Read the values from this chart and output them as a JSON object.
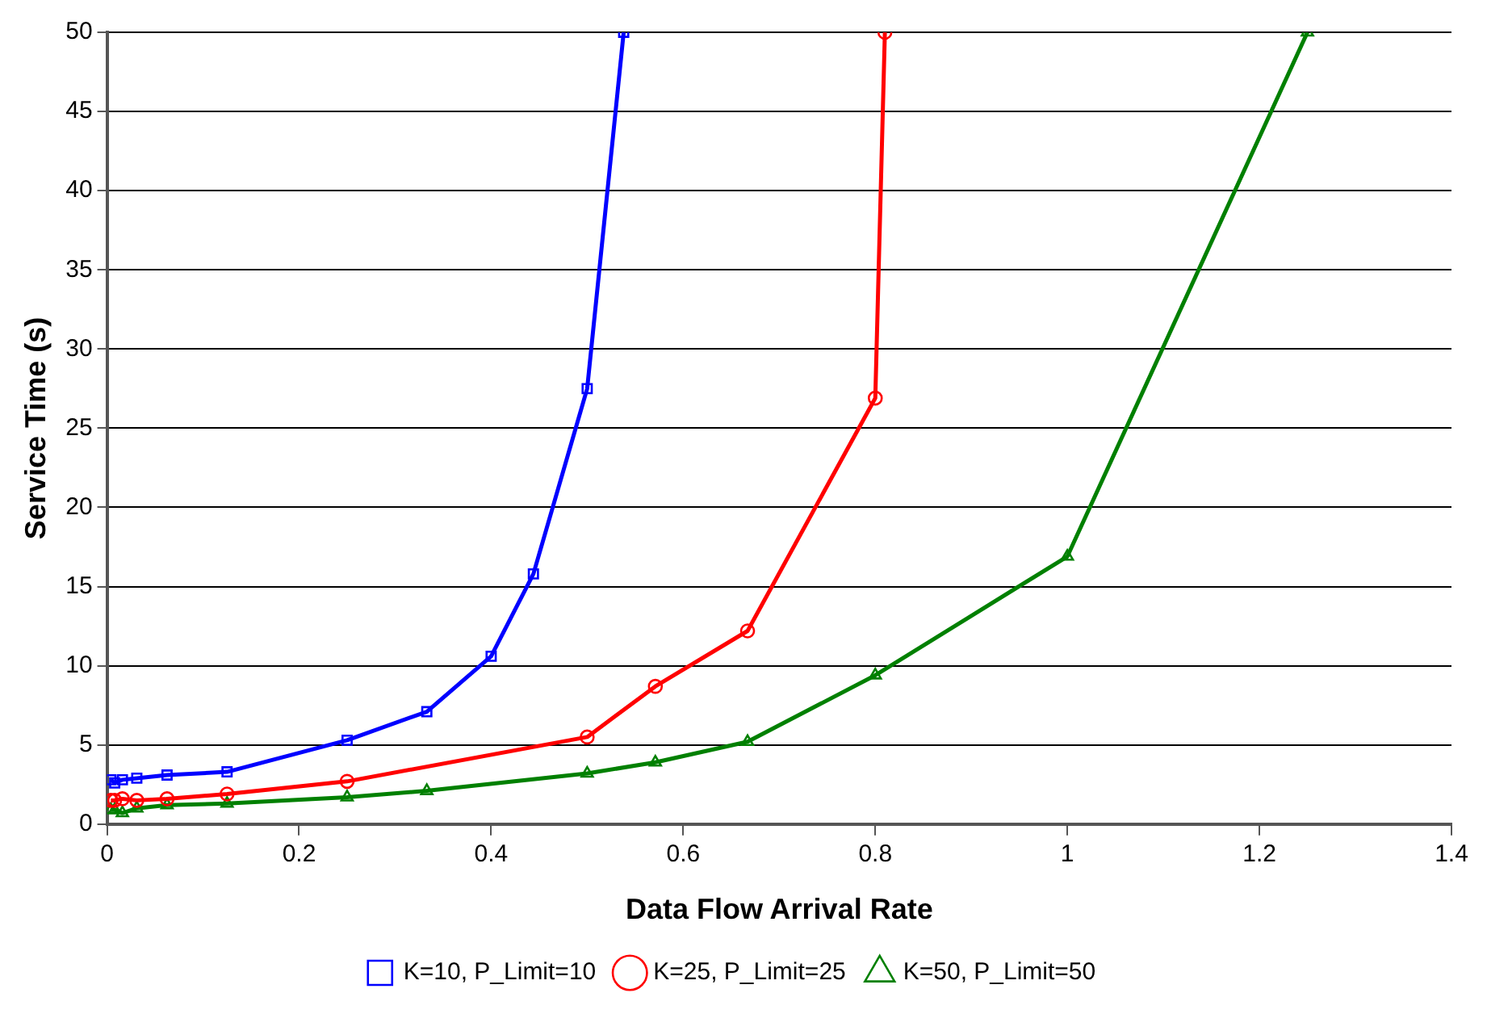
{
  "chart_data": {
    "type": "line",
    "xlabel": "Data Flow Arrival Rate",
    "ylabel": "Service Time (s)",
    "xlim": [
      0,
      1.4
    ],
    "xticks": [
      0,
      0.2,
      0.4,
      0.6,
      0.8,
      1,
      1.2,
      1.4
    ],
    "ylim": [
      0,
      50
    ],
    "yticks": [
      0,
      5,
      10,
      15,
      20,
      25,
      30,
      35,
      40,
      45,
      50
    ],
    "grid": "y",
    "legend": "bottom",
    "line_style": "solid",
    "series": [
      {
        "name": "K=10, P_Limit=10",
        "color": "#0000ff",
        "marker": "square",
        "x": [
          0.004,
          0.008,
          0.016,
          0.031,
          0.0625,
          0.125,
          0.25,
          0.333,
          0.4,
          0.444,
          0.5,
          0.538
        ],
        "values": [
          2.8,
          2.6,
          2.8,
          2.9,
          3.1,
          3.3,
          5.3,
          7.1,
          10.6,
          15.8,
          27.5,
          50
        ]
      },
      {
        "name": "K=25, P_Limit=25",
        "color": "#ff0000",
        "marker": "circle",
        "x": [
          0.004,
          0.008,
          0.016,
          0.031,
          0.0625,
          0.125,
          0.25,
          0.5,
          0.571,
          0.667,
          0.8,
          0.81
        ],
        "values": [
          1.5,
          1.5,
          1.6,
          1.5,
          1.6,
          1.9,
          2.7,
          5.5,
          8.7,
          12.2,
          26.9,
          50
        ]
      },
      {
        "name": "K=50, P_Limit=50",
        "color": "#008000",
        "marker": "triangle",
        "x": [
          0.004,
          0.008,
          0.016,
          0.031,
          0.0625,
          0.125,
          0.25,
          0.333,
          0.5,
          0.571,
          0.667,
          0.8,
          1,
          1.25
        ],
        "values": [
          0.9,
          0.9,
          0.7,
          1.0,
          1.2,
          1.3,
          1.7,
          2.1,
          3.2,
          3.9,
          5.2,
          9.4,
          16.9,
          50
        ]
      }
    ]
  }
}
